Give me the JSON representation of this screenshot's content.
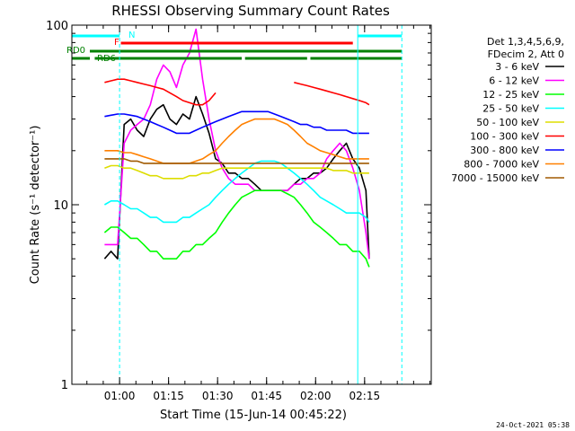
{
  "chart_data": {
    "type": "line",
    "title": "RHESSI Observing Summary Count Rates",
    "xlabel": "Start Time (15-Jun-14 00:45:22)",
    "ylabel": "Count Rate (s⁻¹ detector⁻¹)",
    "y_scale": "log",
    "ylim": [
      1,
      100
    ],
    "y_ticks": [
      {
        "value": 1,
        "label": "1"
      },
      {
        "value": 10,
        "label": "10"
      },
      {
        "value": 100,
        "label": "100"
      }
    ],
    "x_unit": "minutes since 00:45:22",
    "xlim": [
      0,
      110
    ],
    "x_ticks": [
      {
        "value": 14.6,
        "label": "01:00"
      },
      {
        "value": 29.6,
        "label": "01:15"
      },
      {
        "value": 44.6,
        "label": "01:30"
      },
      {
        "value": 59.6,
        "label": "01:45"
      },
      {
        "value": 74.6,
        "label": "02:00"
      },
      {
        "value": 89.6,
        "label": "02:15"
      }
    ],
    "legend_header": [
      "Det 1,3,4,5,6,9,",
      "FDecim 2, Att 0"
    ],
    "legend_position": "right",
    "timestamp": "24-Oct-2021 05:38",
    "series": [
      {
        "name": "3 - 6 keV",
        "color": "#000000",
        "x": [
          10,
          12,
          14,
          16,
          18,
          20,
          22,
          24,
          26,
          28,
          30,
          32,
          34,
          36,
          38,
          40,
          42,
          44,
          46,
          48,
          50,
          52,
          54,
          56,
          58,
          60,
          62,
          64,
          66,
          68,
          70,
          72,
          74,
          76,
          78,
          80,
          82,
          84,
          86,
          88,
          90,
          91
        ],
        "y": [
          5,
          5.5,
          5,
          28,
          30,
          26,
          24,
          30,
          34,
          36,
          30,
          28,
          32,
          30,
          40,
          32,
          25,
          18,
          17,
          15,
          15,
          14,
          14,
          13,
          12,
          12,
          12,
          12,
          12,
          13,
          14,
          14,
          15,
          15,
          16,
          18,
          20,
          22,
          18,
          16,
          12,
          5
        ]
      },
      {
        "name": "6 - 12 keV",
        "color": "#ff00ff",
        "x": [
          10,
          12,
          14,
          16,
          18,
          20,
          22,
          24,
          26,
          28,
          30,
          32,
          34,
          36,
          38,
          40,
          42,
          44,
          46,
          48,
          50,
          52,
          54,
          56,
          58,
          60,
          62,
          64,
          66,
          68,
          70,
          72,
          74,
          76,
          78,
          80,
          82,
          84,
          86,
          88,
          90,
          91
        ],
        "y": [
          6,
          6,
          6,
          22,
          26,
          28,
          30,
          36,
          50,
          60,
          55,
          45,
          60,
          70,
          95,
          50,
          30,
          20,
          16,
          14,
          13,
          13,
          13,
          12,
          12,
          12,
          12,
          12,
          12,
          13,
          13,
          14,
          14,
          15,
          18,
          20,
          22,
          20,
          16,
          12,
          7,
          5
        ]
      },
      {
        "name": "12 - 25 keV",
        "color": "#00ff00",
        "x": [
          10,
          12,
          14,
          16,
          18,
          20,
          22,
          24,
          26,
          28,
          30,
          32,
          34,
          36,
          38,
          40,
          42,
          44,
          46,
          48,
          50,
          52,
          54,
          56,
          58,
          60,
          62,
          64,
          66,
          68,
          70,
          72,
          74,
          76,
          78,
          80,
          82,
          84,
          86,
          88,
          90,
          91
        ],
        "y": [
          7,
          7.5,
          7.5,
          7,
          6.5,
          6.5,
          6,
          5.5,
          5.5,
          5,
          5,
          5,
          5.5,
          5.5,
          6,
          6,
          6.5,
          7,
          8,
          9,
          10,
          11,
          11.5,
          12,
          12,
          12,
          12,
          12,
          11.5,
          11,
          10,
          9,
          8,
          7.5,
          7,
          6.5,
          6,
          6,
          5.5,
          5.5,
          5,
          4.5
        ]
      },
      {
        "name": "25 - 50 keV",
        "color": "#00ffff",
        "x": [
          10,
          12,
          14,
          16,
          18,
          20,
          22,
          24,
          26,
          28,
          30,
          32,
          34,
          36,
          38,
          40,
          42,
          44,
          46,
          48,
          50,
          52,
          54,
          56,
          58,
          60,
          62,
          64,
          66,
          68,
          70,
          72,
          74,
          76,
          78,
          80,
          82,
          84,
          86,
          88,
          90,
          91
        ],
        "y": [
          10,
          10.5,
          10.5,
          10,
          9.5,
          9.5,
          9,
          8.5,
          8.5,
          8,
          8,
          8,
          8.5,
          8.5,
          9,
          9.5,
          10,
          11,
          12,
          13,
          14,
          15,
          16,
          17,
          17.5,
          17.5,
          17.5,
          17,
          16,
          15,
          14,
          13,
          12,
          11,
          10.5,
          10,
          9.5,
          9,
          9,
          9,
          8.5,
          8
        ]
      },
      {
        "name": "50 - 100 keV",
        "color": "#dddd00",
        "x": [
          10,
          12,
          14,
          16,
          18,
          20,
          22,
          24,
          26,
          28,
          30,
          32,
          34,
          36,
          38,
          40,
          42,
          44,
          46,
          48,
          50,
          52,
          54,
          56,
          58,
          60,
          62,
          64,
          66,
          68,
          70,
          72,
          74,
          76,
          78,
          80,
          82,
          84,
          86,
          88,
          90,
          91
        ],
        "y": [
          16,
          16.5,
          16.5,
          16,
          16,
          15.5,
          15,
          14.5,
          14.5,
          14,
          14,
          14,
          14,
          14.5,
          14.5,
          15,
          15,
          15.5,
          16,
          16,
          16,
          16,
          16,
          16,
          16,
          16,
          16,
          16,
          16,
          16,
          16,
          16,
          16,
          16,
          16,
          15.5,
          15.5,
          15.5,
          15,
          15,
          15,
          15
        ]
      },
      {
        "name": "100 - 300 keV",
        "color": "#ff0000",
        "x": [
          10,
          12,
          14,
          16,
          18,
          20,
          22,
          24,
          26,
          28,
          30,
          32,
          34,
          36,
          38,
          40,
          42,
          44,
          46,
          48,
          50,
          52,
          54,
          56,
          58,
          60,
          62,
          64,
          66,
          68,
          70,
          72,
          74,
          76,
          78,
          80,
          82,
          84,
          86,
          88,
          90,
          91
        ],
        "y": [
          48,
          49,
          50,
          50,
          49,
          48,
          47,
          46,
          45,
          44,
          42,
          40,
          38,
          37,
          36,
          36,
          38,
          42,
          null,
          null,
          null,
          null,
          null,
          null,
          null,
          null,
          null,
          null,
          null,
          48,
          47,
          46,
          45,
          44,
          43,
          42,
          41,
          40,
          39,
          38,
          37,
          36
        ]
      },
      {
        "name": "300 - 800 keV",
        "color": "#0000ff",
        "x": [
          10,
          12,
          14,
          16,
          18,
          20,
          22,
          24,
          26,
          28,
          30,
          32,
          34,
          36,
          38,
          40,
          42,
          44,
          46,
          48,
          50,
          52,
          54,
          56,
          58,
          60,
          62,
          64,
          66,
          68,
          70,
          72,
          74,
          76,
          78,
          80,
          82,
          84,
          86,
          88,
          90,
          91
        ],
        "y": [
          31,
          31.5,
          32,
          32,
          31.5,
          31,
          30,
          29,
          28,
          27,
          26,
          25,
          25,
          25,
          26,
          27,
          28,
          29,
          30,
          31,
          32,
          33,
          33,
          33,
          33,
          33,
          32,
          31,
          30,
          29,
          28,
          28,
          27,
          27,
          26,
          26,
          26,
          26,
          25,
          25,
          25,
          25
        ]
      },
      {
        "name": "800 - 7000 keV",
        "color": "#ff8000",
        "x": [
          10,
          12,
          14,
          16,
          18,
          20,
          22,
          24,
          26,
          28,
          30,
          32,
          34,
          36,
          38,
          40,
          42,
          44,
          46,
          48,
          50,
          52,
          54,
          56,
          58,
          60,
          62,
          64,
          66,
          68,
          70,
          72,
          74,
          76,
          78,
          80,
          82,
          84,
          86,
          88,
          90,
          91
        ],
        "y": [
          20,
          20,
          20,
          19.5,
          19.5,
          19,
          18.5,
          18,
          17.5,
          17,
          17,
          17,
          17,
          17,
          17.5,
          18,
          19,
          20,
          22,
          24,
          26,
          28,
          29,
          30,
          30,
          30,
          30,
          29,
          28,
          26,
          24,
          22,
          21,
          20,
          19.5,
          19,
          18.5,
          18,
          18,
          18,
          18,
          18
        ]
      },
      {
        "name": "7000 - 15000 keV",
        "color": "#a05a00",
        "x": [
          10,
          12,
          14,
          16,
          18,
          20,
          22,
          24,
          26,
          28,
          30,
          32,
          34,
          36,
          38,
          40,
          42,
          44,
          46,
          48,
          50,
          52,
          54,
          56,
          58,
          60,
          62,
          64,
          66,
          68,
          70,
          72,
          74,
          76,
          78,
          80,
          82,
          84,
          86,
          88,
          90,
          91
        ],
        "y": [
          18,
          18,
          18,
          18,
          17.5,
          17.5,
          17,
          17,
          17,
          17,
          17,
          17,
          17,
          17,
          17,
          17,
          17,
          17,
          17,
          17,
          17,
          17,
          17,
          17,
          17,
          17,
          17,
          17,
          17,
          17,
          17,
          17,
          17,
          17,
          17,
          17,
          17,
          17,
          17,
          17,
          17,
          17
        ]
      }
    ],
    "status_bars": [
      {
        "label": "N",
        "color": "#00ffff",
        "segments": [
          [
            0,
            14.6
          ],
          [
            87.5,
            101
          ]
        ]
      },
      {
        "label": "F",
        "color": "#ff0000",
        "segments": [
          [
            15,
            86
          ]
        ]
      },
      {
        "label": "RD0",
        "color": "#008000",
        "segments": [
          [
            5.5,
            101
          ]
        ]
      },
      {
        "label": "RD6",
        "color": "#008000",
        "segments": [
          [
            0,
            5.5
          ],
          [
            7,
            52
          ],
          [
            53,
            72
          ],
          [
            73,
            101
          ]
        ]
      }
    ],
    "vertical_lines": [
      {
        "x": 0,
        "color": "#00ffff",
        "style": "solid"
      },
      {
        "x": 14.6,
        "color": "#00ffff",
        "style": "dashed"
      },
      {
        "x": 87.5,
        "color": "#00ffff",
        "style": "solid"
      },
      {
        "x": 101,
        "color": "#00ffff",
        "style": "dashed"
      }
    ]
  }
}
